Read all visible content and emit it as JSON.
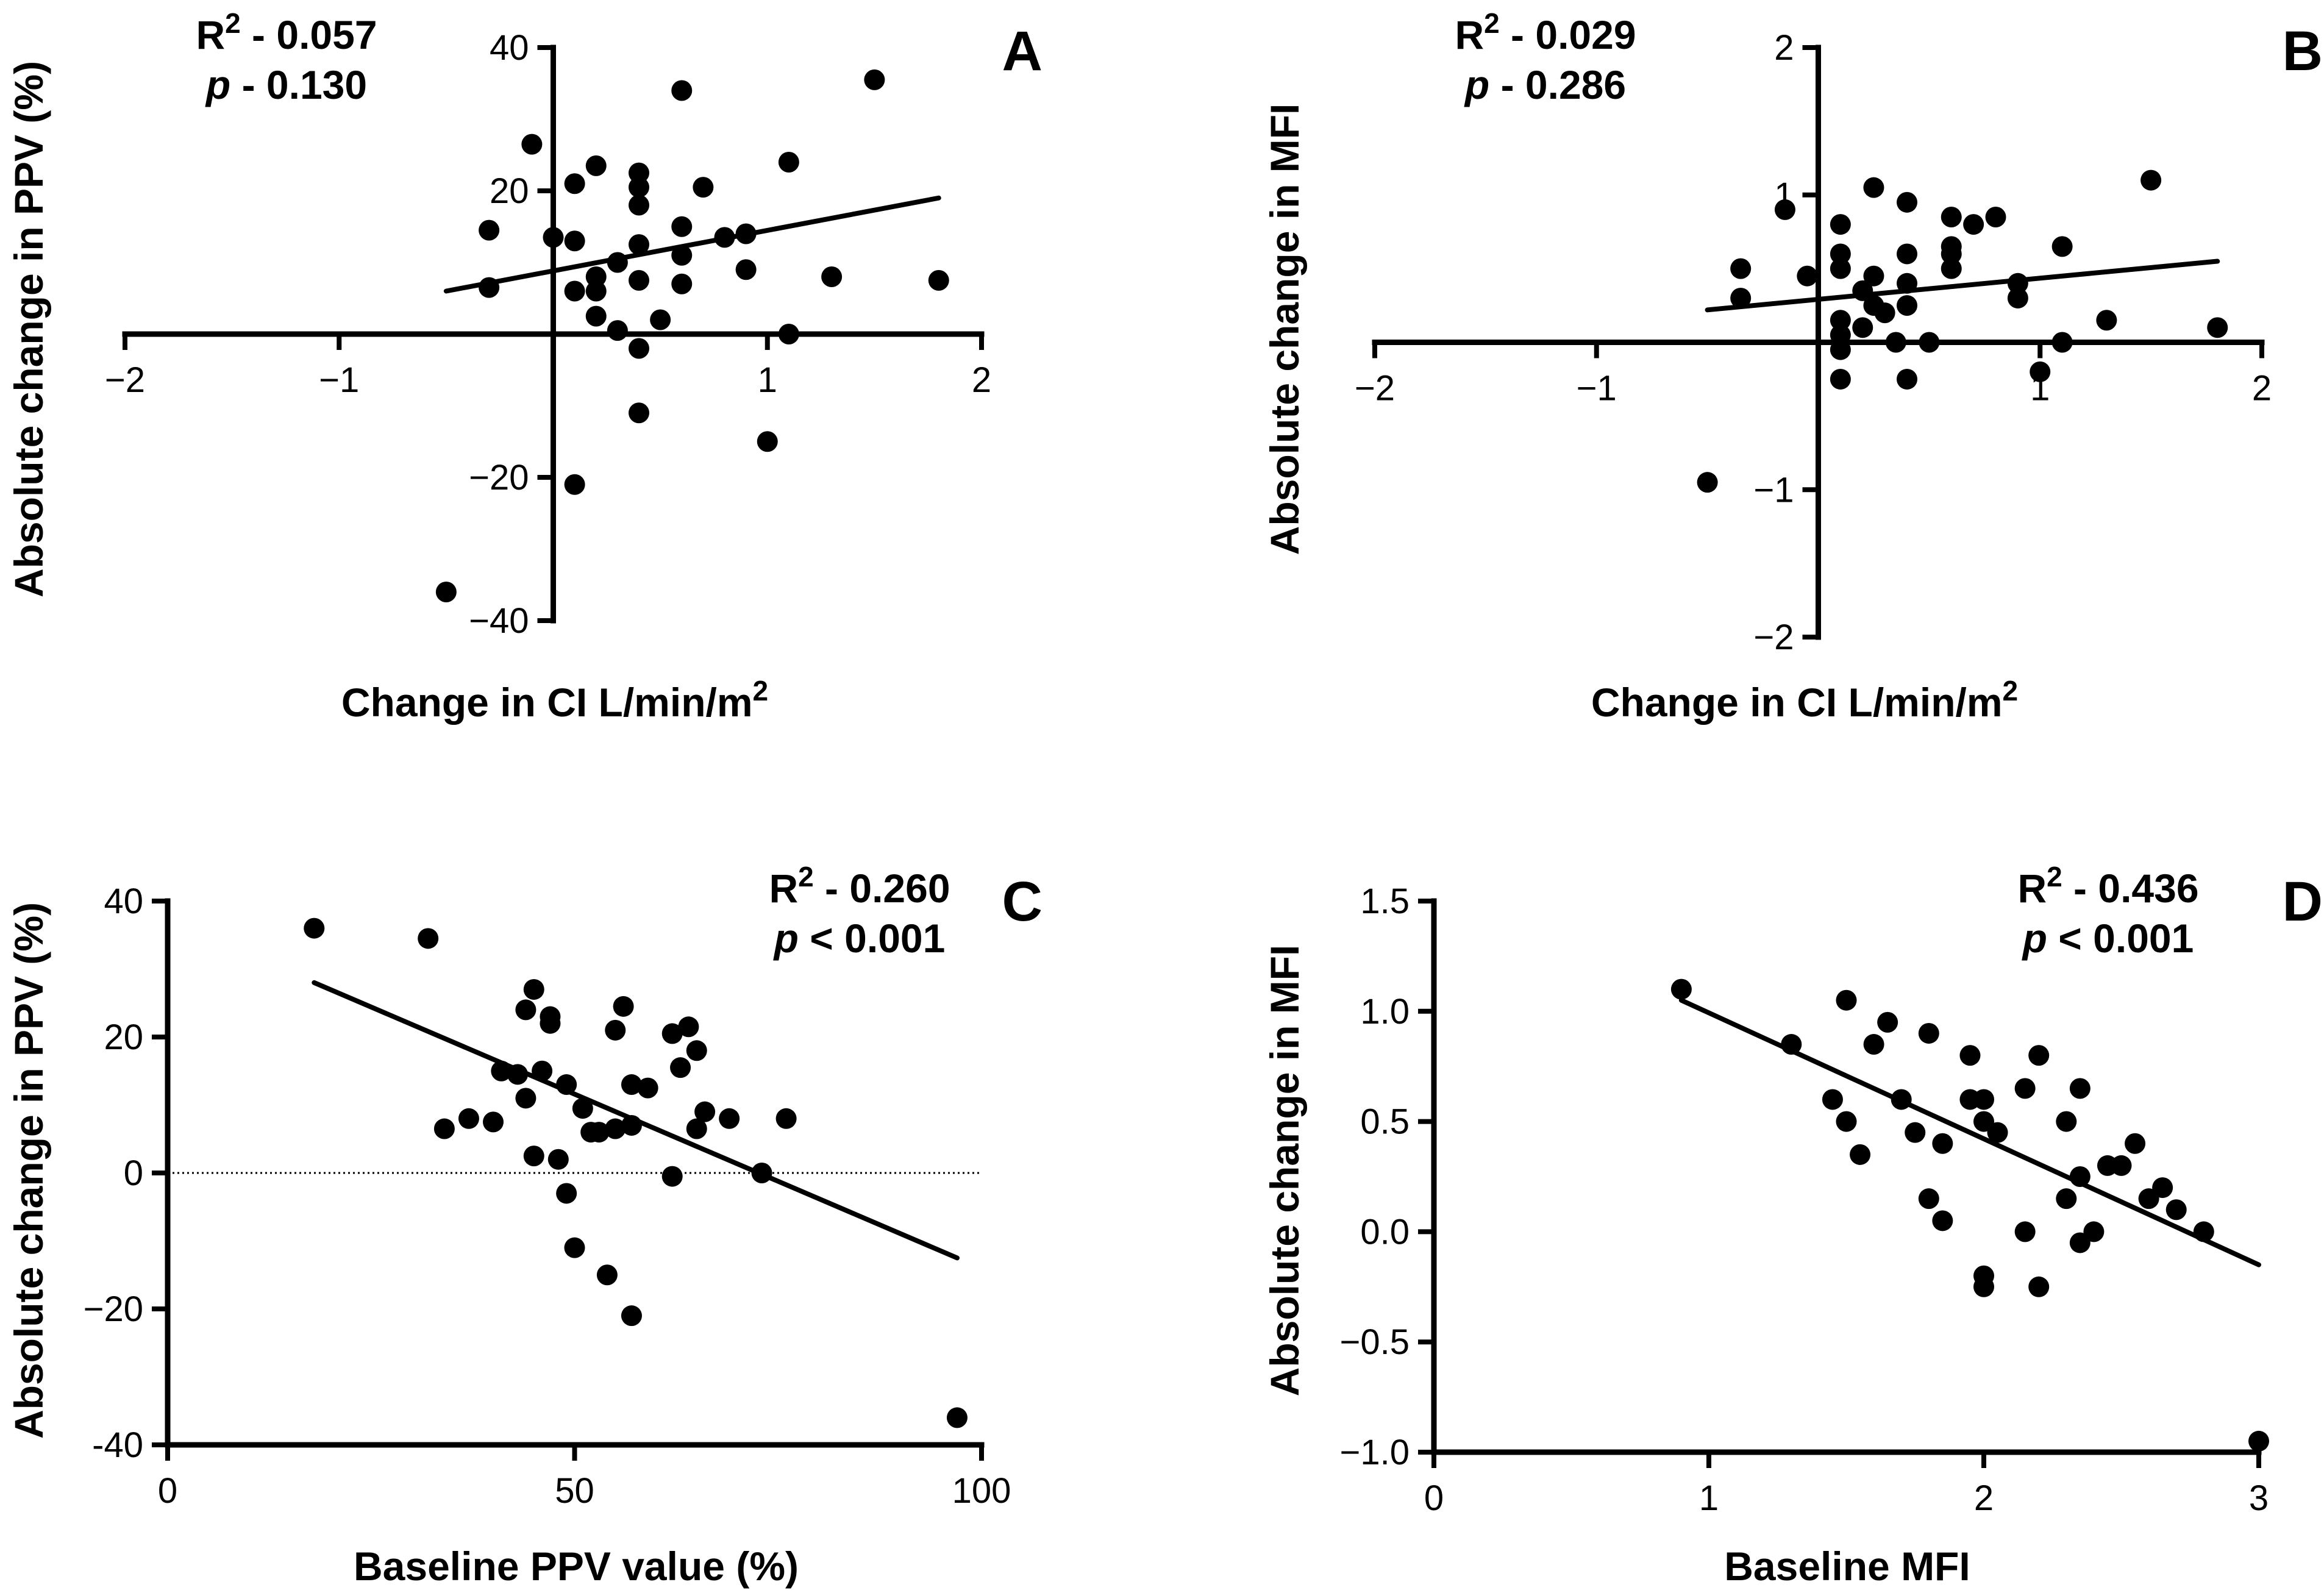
{
  "chart_data": [
    {
      "panel": "A",
      "type": "scatter",
      "xlabel": "Change in CI L/min/m",
      "xlabel_sup": "2",
      "ylabel": "Absolute change in PPV (%)",
      "xlim": [
        -2,
        2
      ],
      "ylim": [
        -40,
        40
      ],
      "xticks": [
        -2,
        -1,
        1,
        2
      ],
      "yticks": [
        -40,
        -20,
        20,
        40
      ],
      "xtick_labels": [
        "−2",
        "−1",
        "1",
        "2"
      ],
      "ytick_labels": [
        "−40",
        "−20",
        "20",
        "40"
      ],
      "axes_cross_at_zero": true,
      "stats": {
        "r2_label": "R",
        "r2_sup": "2",
        "r2_value": " - 0.057",
        "p_label": "p",
        "p_value": " - 0.130"
      },
      "stats_position": "top-left",
      "fit_line": {
        "x": [
          -0.5,
          1.8
        ],
        "y": [
          6,
          19
        ]
      },
      "points": [
        [
          -0.5,
          -36
        ],
        [
          -0.3,
          6.5
        ],
        [
          -0.3,
          14.5
        ],
        [
          -0.1,
          26.5
        ],
        [
          0,
          13.5
        ],
        [
          0.1,
          21
        ],
        [
          0.1,
          13
        ],
        [
          0.1,
          6
        ],
        [
          0.1,
          -21
        ],
        [
          0.2,
          8
        ],
        [
          0.2,
          6
        ],
        [
          0.2,
          23.5
        ],
        [
          0.2,
          2.5
        ],
        [
          0.3,
          0.5
        ],
        [
          0.3,
          10
        ],
        [
          0.4,
          22.5
        ],
        [
          0.4,
          20.5
        ],
        [
          0.4,
          18
        ],
        [
          0.4,
          12.5
        ],
        [
          0.4,
          7.5
        ],
        [
          0.4,
          -2
        ],
        [
          0.4,
          -11
        ],
        [
          0.5,
          2
        ],
        [
          0.6,
          34
        ],
        [
          0.6,
          15
        ],
        [
          0.6,
          11
        ],
        [
          0.6,
          7
        ],
        [
          0.7,
          20.5
        ],
        [
          0.8,
          13.5
        ],
        [
          0.9,
          14
        ],
        [
          0.9,
          9
        ],
        [
          1.0,
          -15
        ],
        [
          1.1,
          24
        ],
        [
          1.1,
          0
        ],
        [
          1.3,
          8
        ],
        [
          1.5,
          35.5
        ],
        [
          1.8,
          7.5
        ]
      ]
    },
    {
      "panel": "B",
      "type": "scatter",
      "xlabel": "Change in CI L/min/m",
      "xlabel_sup": "2",
      "ylabel": "Absolute change in MFI",
      "xlim": [
        -2,
        2
      ],
      "ylim": [
        -2,
        2
      ],
      "xticks": [
        -2,
        -1,
        1,
        2
      ],
      "yticks": [
        -2,
        -1,
        1,
        2
      ],
      "xtick_labels": [
        "−2",
        "−1",
        "1",
        "2"
      ],
      "ytick_labels": [
        "−2",
        "−1",
        "1",
        "2"
      ],
      "axes_cross_at_zero": true,
      "stats": {
        "r2_label": "R",
        "r2_sup": "2",
        "r2_value": " - 0.029",
        "p_label": "p",
        "p_value": " - 0.286"
      },
      "stats_position": "top-left",
      "fit_line": {
        "x": [
          -0.5,
          1.8
        ],
        "y": [
          0.22,
          0.55
        ]
      },
      "points": [
        [
          -0.5,
          -0.95
        ],
        [
          -0.35,
          0.3
        ],
        [
          -0.35,
          0.5
        ],
        [
          -0.15,
          0.9
        ],
        [
          -0.05,
          0.45
        ],
        [
          0.1,
          0.8
        ],
        [
          0.1,
          0.6
        ],
        [
          0.1,
          0.5
        ],
        [
          0.1,
          0.15
        ],
        [
          0.1,
          0.05
        ],
        [
          0.1,
          -0.05
        ],
        [
          0.1,
          -0.25
        ],
        [
          0.2,
          0.1
        ],
        [
          0.2,
          0.35
        ],
        [
          0.25,
          1.05
        ],
        [
          0.25,
          0.45
        ],
        [
          0.25,
          0.25
        ],
        [
          0.3,
          0.2
        ],
        [
          0.35,
          0.0
        ],
        [
          0.4,
          0.95
        ],
        [
          0.4,
          0.6
        ],
        [
          0.4,
          0.4
        ],
        [
          0.4,
          0.25
        ],
        [
          0.4,
          -0.25
        ],
        [
          0.5,
          0.0
        ],
        [
          0.6,
          0.85
        ],
        [
          0.6,
          0.65
        ],
        [
          0.6,
          0.6
        ],
        [
          0.6,
          0.5
        ],
        [
          0.7,
          0.8
        ],
        [
          0.8,
          0.85
        ],
        [
          0.9,
          0.4
        ],
        [
          0.9,
          0.3
        ],
        [
          1.0,
          -0.2
        ],
        [
          1.1,
          0.65
        ],
        [
          1.1,
          0.0
        ],
        [
          1.3,
          0.15
        ],
        [
          1.5,
          1.1
        ],
        [
          1.8,
          0.1
        ]
      ]
    },
    {
      "panel": "C",
      "type": "scatter",
      "xlabel": "Baseline PPV value (%)",
      "ylabel": "Absolute change in PPV (%)",
      "xlim": [
        0,
        100
      ],
      "ylim": [
        -40,
        40
      ],
      "xticks": [
        0,
        50,
        100
      ],
      "yticks": [
        -40,
        -20,
        0,
        20,
        40
      ],
      "xtick_labels": [
        "0",
        "50",
        "100"
      ],
      "ytick_labels": [
        "-40",
        "−20",
        "0",
        "20",
        "40"
      ],
      "reference_line": {
        "y": 0,
        "style": "dotted"
      },
      "stats": {
        "r2_label": "R",
        "r2_sup": "2",
        "r2_value": " - 0.260",
        "p_label": "p",
        "p_value": " < 0.001"
      },
      "stats_position": "top-right",
      "fit_line": {
        "x": [
          18,
          97
        ],
        "y": [
          28,
          -12.5
        ]
      },
      "points": [
        [
          18,
          36
        ],
        [
          32,
          34.5
        ],
        [
          34,
          6.5
        ],
        [
          37,
          8
        ],
        [
          40,
          7.5
        ],
        [
          41,
          15
        ],
        [
          43,
          14.5
        ],
        [
          44,
          24
        ],
        [
          44,
          11
        ],
        [
          45,
          2.5
        ],
        [
          45,
          27
        ],
        [
          46,
          15
        ],
        [
          47,
          23
        ],
        [
          47,
          22
        ],
        [
          48,
          2
        ],
        [
          49,
          13
        ],
        [
          49,
          -3
        ],
        [
          50,
          -11
        ],
        [
          51,
          9.5
        ],
        [
          52,
          6
        ],
        [
          53,
          6
        ],
        [
          54,
          -15
        ],
        [
          55,
          21
        ],
        [
          55,
          6.5
        ],
        [
          56,
          24.5
        ],
        [
          57,
          -21
        ],
        [
          57,
          13
        ],
        [
          57,
          7
        ],
        [
          59,
          12.5
        ],
        [
          62,
          -0.5
        ],
        [
          62,
          20.5
        ],
        [
          63,
          15.5
        ],
        [
          64,
          21.5
        ],
        [
          65,
          18
        ],
        [
          65,
          6.5
        ],
        [
          66,
          9
        ],
        [
          69,
          8
        ],
        [
          73,
          0
        ],
        [
          76,
          8
        ],
        [
          97,
          -36
        ]
      ]
    },
    {
      "panel": "D",
      "type": "scatter",
      "xlabel": "Baseline MFI",
      "ylabel": "Absolute change in MFI",
      "xlim": [
        0,
        3
      ],
      "ylim": [
        -1.0,
        1.5
      ],
      "xticks": [
        0,
        1,
        2,
        3
      ],
      "yticks": [
        -1.0,
        -0.5,
        0.0,
        0.5,
        1.0,
        1.5
      ],
      "xtick_labels": [
        "0",
        "1",
        "2",
        "3"
      ],
      "ytick_labels": [
        "−1.0",
        "−0.5",
        "0.0",
        "0.5",
        "1.0",
        "1.5"
      ],
      "stats": {
        "r2_label": "R",
        "r2_sup": "2",
        "r2_value": " - 0.436",
        "p_label": "p",
        "p_value": " < 0.001"
      },
      "stats_position": "top-right",
      "fit_line": {
        "x": [
          0.9,
          3.0
        ],
        "y": [
          1.05,
          -0.15
        ]
      },
      "points": [
        [
          0.9,
          1.1
        ],
        [
          1.3,
          0.85
        ],
        [
          1.45,
          0.6
        ],
        [
          1.5,
          1.05
        ],
        [
          1.5,
          0.5
        ],
        [
          1.55,
          0.35
        ],
        [
          1.6,
          0.85
        ],
        [
          1.65,
          0.95
        ],
        [
          1.7,
          0.6
        ],
        [
          1.75,
          0.45
        ],
        [
          1.8,
          0.9
        ],
        [
          1.8,
          0.15
        ],
        [
          1.85,
          0.4
        ],
        [
          1.85,
          0.05
        ],
        [
          1.95,
          0.8
        ],
        [
          1.95,
          0.6
        ],
        [
          2.0,
          0.6
        ],
        [
          2.0,
          0.5
        ],
        [
          2.0,
          -0.2
        ],
        [
          2.0,
          -0.25
        ],
        [
          2.05,
          0.45
        ],
        [
          2.15,
          0.65
        ],
        [
          2.15,
          0.0
        ],
        [
          2.2,
          0.8
        ],
        [
          2.2,
          -0.25
        ],
        [
          2.3,
          0.5
        ],
        [
          2.3,
          0.15
        ],
        [
          2.35,
          0.65
        ],
        [
          2.35,
          0.25
        ],
        [
          2.35,
          -0.05
        ],
        [
          2.4,
          0.0
        ],
        [
          2.45,
          0.3
        ],
        [
          2.5,
          0.3
        ],
        [
          2.55,
          0.4
        ],
        [
          2.6,
          0.15
        ],
        [
          2.65,
          0.2
        ],
        [
          2.7,
          0.1
        ],
        [
          2.8,
          0.0
        ],
        [
          3.0,
          -0.95
        ]
      ]
    }
  ]
}
